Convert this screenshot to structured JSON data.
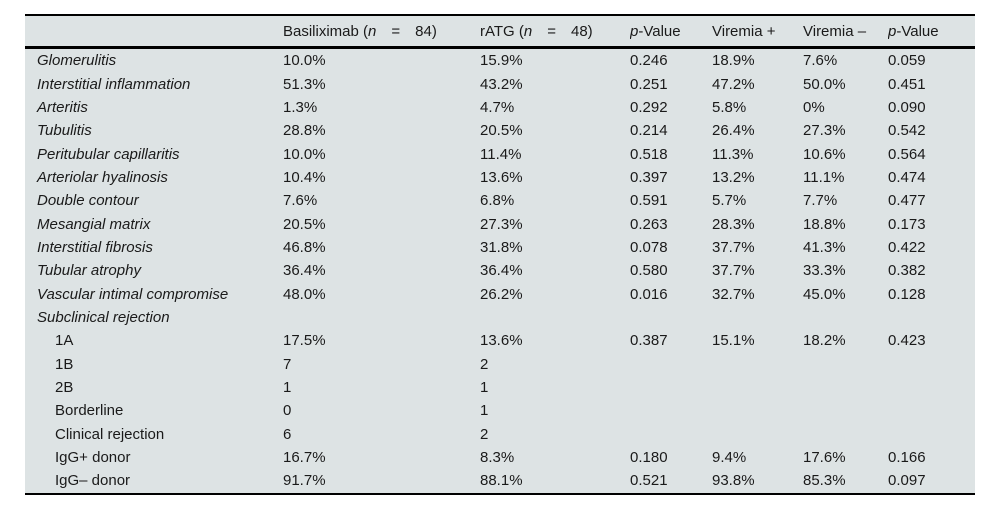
{
  "table": {
    "header": {
      "cells": [
        {
          "name": "rowlabel-empty",
          "parts": [
            {
              "t": ""
            }
          ]
        },
        {
          "name": "basiliximab",
          "parts": [
            {
              "t": "Basiliximab ("
            },
            {
              "t": "n",
              "i": true
            },
            {
              "t": "  =  84)"
            }
          ]
        },
        {
          "name": "ratg",
          "parts": [
            {
              "t": "rATG ("
            },
            {
              "t": "n",
              "i": true
            },
            {
              "t": "  =  48)"
            }
          ]
        },
        {
          "name": "p-value-1",
          "parts": [
            {
              "t": "p",
              "i": true
            },
            {
              "t": "-Value"
            }
          ]
        },
        {
          "name": "viremia-positive",
          "parts": [
            {
              "t": "Viremia +"
            }
          ]
        },
        {
          "name": "viremia-negative",
          "parts": [
            {
              "t": "Viremia –"
            }
          ]
        },
        {
          "name": "p-value-2",
          "parts": [
            {
              "t": "p",
              "i": true
            },
            {
              "t": "-Value"
            }
          ]
        }
      ]
    },
    "rows": [
      {
        "label": "Glomerulitis",
        "italic": true,
        "indent": false,
        "values": [
          "10.0%",
          "15.9%",
          "0.246",
          "18.9%",
          "7.6%",
          "0.059"
        ]
      },
      {
        "label": "Interstitial inflammation",
        "italic": true,
        "indent": false,
        "values": [
          "51.3%",
          "43.2%",
          "0.251",
          "47.2%",
          "50.0%",
          "0.451"
        ]
      },
      {
        "label": "Arteritis",
        "italic": true,
        "indent": false,
        "values": [
          "1.3%",
          "4.7%",
          "0.292",
          "5.8%",
          "0%",
          "0.090"
        ]
      },
      {
        "label": "Tubulitis",
        "italic": true,
        "indent": false,
        "values": [
          "28.8%",
          "20.5%",
          "0.214",
          "26.4%",
          "27.3%",
          "0.542"
        ]
      },
      {
        "label": "Peritubular capillaritis",
        "italic": true,
        "indent": false,
        "values": [
          "10.0%",
          "11.4%",
          "0.518",
          "11.3%",
          "10.6%",
          "0.564"
        ]
      },
      {
        "label": "Arteriolar hyalinosis",
        "italic": true,
        "indent": false,
        "values": [
          "10.4%",
          "13.6%",
          "0.397",
          "13.2%",
          "11.1%",
          "0.474"
        ]
      },
      {
        "label": "Double contour",
        "italic": true,
        "indent": false,
        "values": [
          "7.6%",
          "6.8%",
          "0.591",
          "5.7%",
          "7.7%",
          "0.477"
        ]
      },
      {
        "label": "Mesangial matrix",
        "italic": true,
        "indent": false,
        "values": [
          "20.5%",
          "27.3%",
          "0.263",
          "28.3%",
          "18.8%",
          "0.173"
        ]
      },
      {
        "label": "Interstitial fibrosis",
        "italic": true,
        "indent": false,
        "values": [
          "46.8%",
          "31.8%",
          "0.078",
          "37.7%",
          "41.3%",
          "0.422"
        ]
      },
      {
        "label": "Tubular atrophy",
        "italic": true,
        "indent": false,
        "values": [
          "36.4%",
          "36.4%",
          "0.580",
          "37.7%",
          "33.3%",
          "0.382"
        ]
      },
      {
        "label": "Vascular intimal compromise",
        "italic": true,
        "indent": false,
        "values": [
          "48.0%",
          "26.2%",
          "0.016",
          "32.7%",
          "45.0%",
          "0.128"
        ]
      },
      {
        "label": "Subclinical rejection",
        "italic": true,
        "indent": false,
        "values": [
          "",
          "",
          "",
          "",
          "",
          ""
        ]
      },
      {
        "label": "1A",
        "italic": false,
        "indent": true,
        "values": [
          "17.5%",
          "13.6%",
          "0.387",
          "15.1%",
          "18.2%",
          "0.423"
        ]
      },
      {
        "label": "1B",
        "italic": false,
        "indent": true,
        "values": [
          "7",
          "2",
          "",
          "",
          "",
          ""
        ]
      },
      {
        "label": "2B",
        "italic": false,
        "indent": true,
        "values": [
          "1",
          "1",
          "",
          "",
          "",
          ""
        ]
      },
      {
        "label": "Borderline",
        "italic": false,
        "indent": true,
        "values": [
          "0",
          "1",
          "",
          "",
          "",
          ""
        ]
      },
      {
        "label": "Clinical rejection",
        "italic": false,
        "indent": true,
        "values": [
          "6",
          "2",
          "",
          "",
          "",
          ""
        ]
      },
      {
        "label": "IgG+ donor",
        "italic": false,
        "indent": true,
        "values": [
          "16.7%",
          "8.3%",
          "0.180",
          "9.4%",
          "17.6%",
          "0.166"
        ]
      },
      {
        "label": "IgG– donor",
        "italic": false,
        "indent": true,
        "values": [
          "91.7%",
          "88.1%",
          "0.521",
          "93.8%",
          "85.3%",
          "0.097"
        ]
      }
    ],
    "style": {
      "background_color": "#dde3e4",
      "rule_color": "#000000",
      "text_color": "#1a1a1a"
    }
  }
}
